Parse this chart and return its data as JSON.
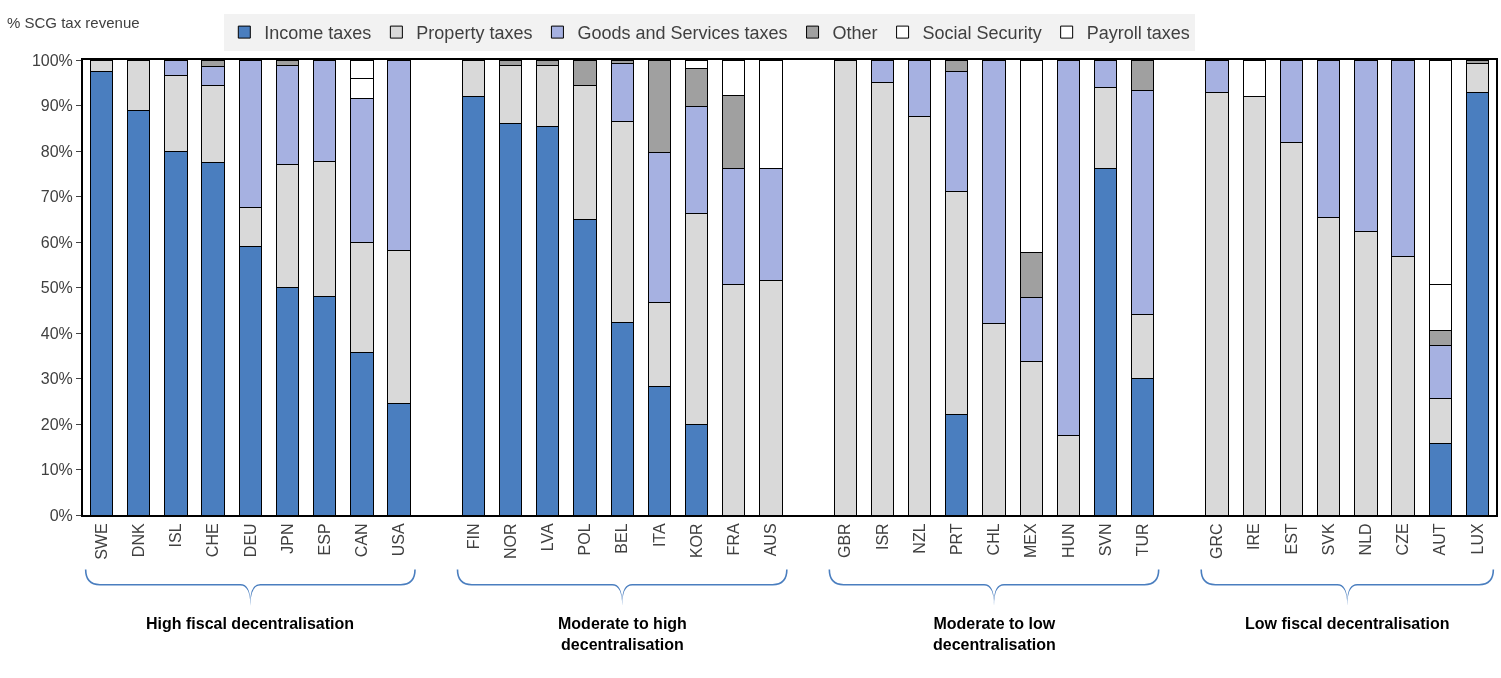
{
  "chart_data": {
    "type": "bar",
    "stacked": true,
    "ylabel": "% SCG tax revenue",
    "categories": [
      "SWE",
      "DNK",
      "ISL",
      "CHE",
      "DEU",
      "JPN",
      "ESP",
      "CAN",
      "USA",
      null,
      "FIN",
      "NOR",
      "LVA",
      "POL",
      "BEL",
      "ITA",
      "KOR",
      "FRA",
      "AUS",
      null,
      "GBR",
      "ISR",
      "NZL",
      "PRT",
      "CHL",
      "MEX",
      "HUN",
      "SVN",
      "TUR",
      null,
      "GRC",
      "IRE",
      "EST",
      "SVK",
      "NLD",
      "CZE",
      "AUT",
      "LUX"
    ],
    "series": [
      {
        "name": "Income taxes",
        "color": "#4a7ebf",
        "values": [
          97.5,
          89,
          80,
          77.5,
          59,
          50,
          48,
          35.7,
          24.5,
          null,
          92,
          86,
          85.3,
          65,
          42.3,
          28.3,
          20,
          null,
          null,
          null,
          null,
          null,
          null,
          22.1,
          null,
          null,
          null,
          76.1,
          30,
          null,
          null,
          null,
          null,
          null,
          null,
          null,
          15.8,
          92.9
        ]
      },
      {
        "name": "Property taxes",
        "color": "#d9d9d9",
        "values": [
          2.5,
          11,
          16.5,
          17,
          8.6,
          27,
          29.8,
          24.3,
          33.7,
          null,
          8,
          12.8,
          13.5,
          29.3,
          44.1,
          18.4,
          46.2,
          50.7,
          51.5,
          null,
          100,
          95.1,
          87.5,
          49.1,
          42.1,
          33.7,
          17.5,
          17.9,
          14.1,
          null,
          92.9,
          91.9,
          81.8,
          65.3,
          62.4,
          56.8,
          9.9,
          6.4
        ]
      },
      {
        "name": "Goods and Services taxes",
        "color": "#a6b1e1",
        "values": [
          null,
          null,
          3.5,
          4,
          32.4,
          21.7,
          22.2,
          31.6,
          41.8,
          null,
          null,
          null,
          null,
          null,
          12.9,
          32.9,
          23.5,
          25.4,
          24.6,
          null,
          null,
          4.9,
          12.5,
          26.3,
          57.9,
          14.1,
          82.5,
          6,
          49.3,
          null,
          7.1,
          null,
          18.2,
          34.7,
          37.6,
          43.2,
          11.5,
          null
        ]
      },
      {
        "name": "Other",
        "color": "#a0a0a0",
        "values": [
          null,
          null,
          null,
          1.5,
          null,
          1.3,
          null,
          null,
          null,
          null,
          null,
          1.2,
          1.2,
          5.7,
          0.7,
          20.4,
          8.5,
          16.2,
          null,
          null,
          null,
          null,
          null,
          2.5,
          null,
          9.9,
          null,
          null,
          6.6,
          null,
          null,
          null,
          null,
          null,
          null,
          null,
          3.3,
          0.7
        ]
      },
      {
        "name": "Social Security",
        "color": "#ffffff",
        "values": [
          null,
          null,
          null,
          null,
          null,
          null,
          null,
          4.3,
          null,
          null,
          null,
          null,
          null,
          null,
          null,
          null,
          1.8,
          null,
          null,
          null,
          null,
          null,
          null,
          null,
          null,
          null,
          null,
          null,
          null,
          null,
          null,
          8.1,
          null,
          null,
          null,
          null,
          10.2,
          null
        ]
      },
      {
        "name": "Payroll taxes",
        "color": "#ffffff",
        "values": [
          null,
          null,
          null,
          null,
          null,
          null,
          null,
          4.1,
          null,
          null,
          null,
          null,
          null,
          null,
          null,
          null,
          null,
          7.7,
          23.9,
          null,
          null,
          null,
          null,
          null,
          null,
          42.3,
          null,
          null,
          null,
          null,
          null,
          null,
          null,
          null,
          null,
          null,
          49.3,
          null
        ]
      }
    ],
    "ylim": [
      0,
      100
    ],
    "yticks": [
      {
        "value": 0,
        "label": "0%"
      },
      {
        "value": 10,
        "label": "10%"
      },
      {
        "value": 20,
        "label": "20%"
      },
      {
        "value": 30,
        "label": "30%"
      },
      {
        "value": 40,
        "label": "40%"
      },
      {
        "value": 50,
        "label": "50%"
      },
      {
        "value": 60,
        "label": "60%"
      },
      {
        "value": 70,
        "label": "70%"
      },
      {
        "value": 80,
        "label": "80%"
      },
      {
        "value": 90,
        "label": "90%"
      },
      {
        "value": 100,
        "label": "100%"
      }
    ],
    "grid": false,
    "legend": "top",
    "annotations": [
      "High fiscal decentralisation",
      "Moderate to high\ndecentralisation",
      "Moderate to low\ndecentralisation",
      "Low fiscal decentralisation"
    ]
  }
}
